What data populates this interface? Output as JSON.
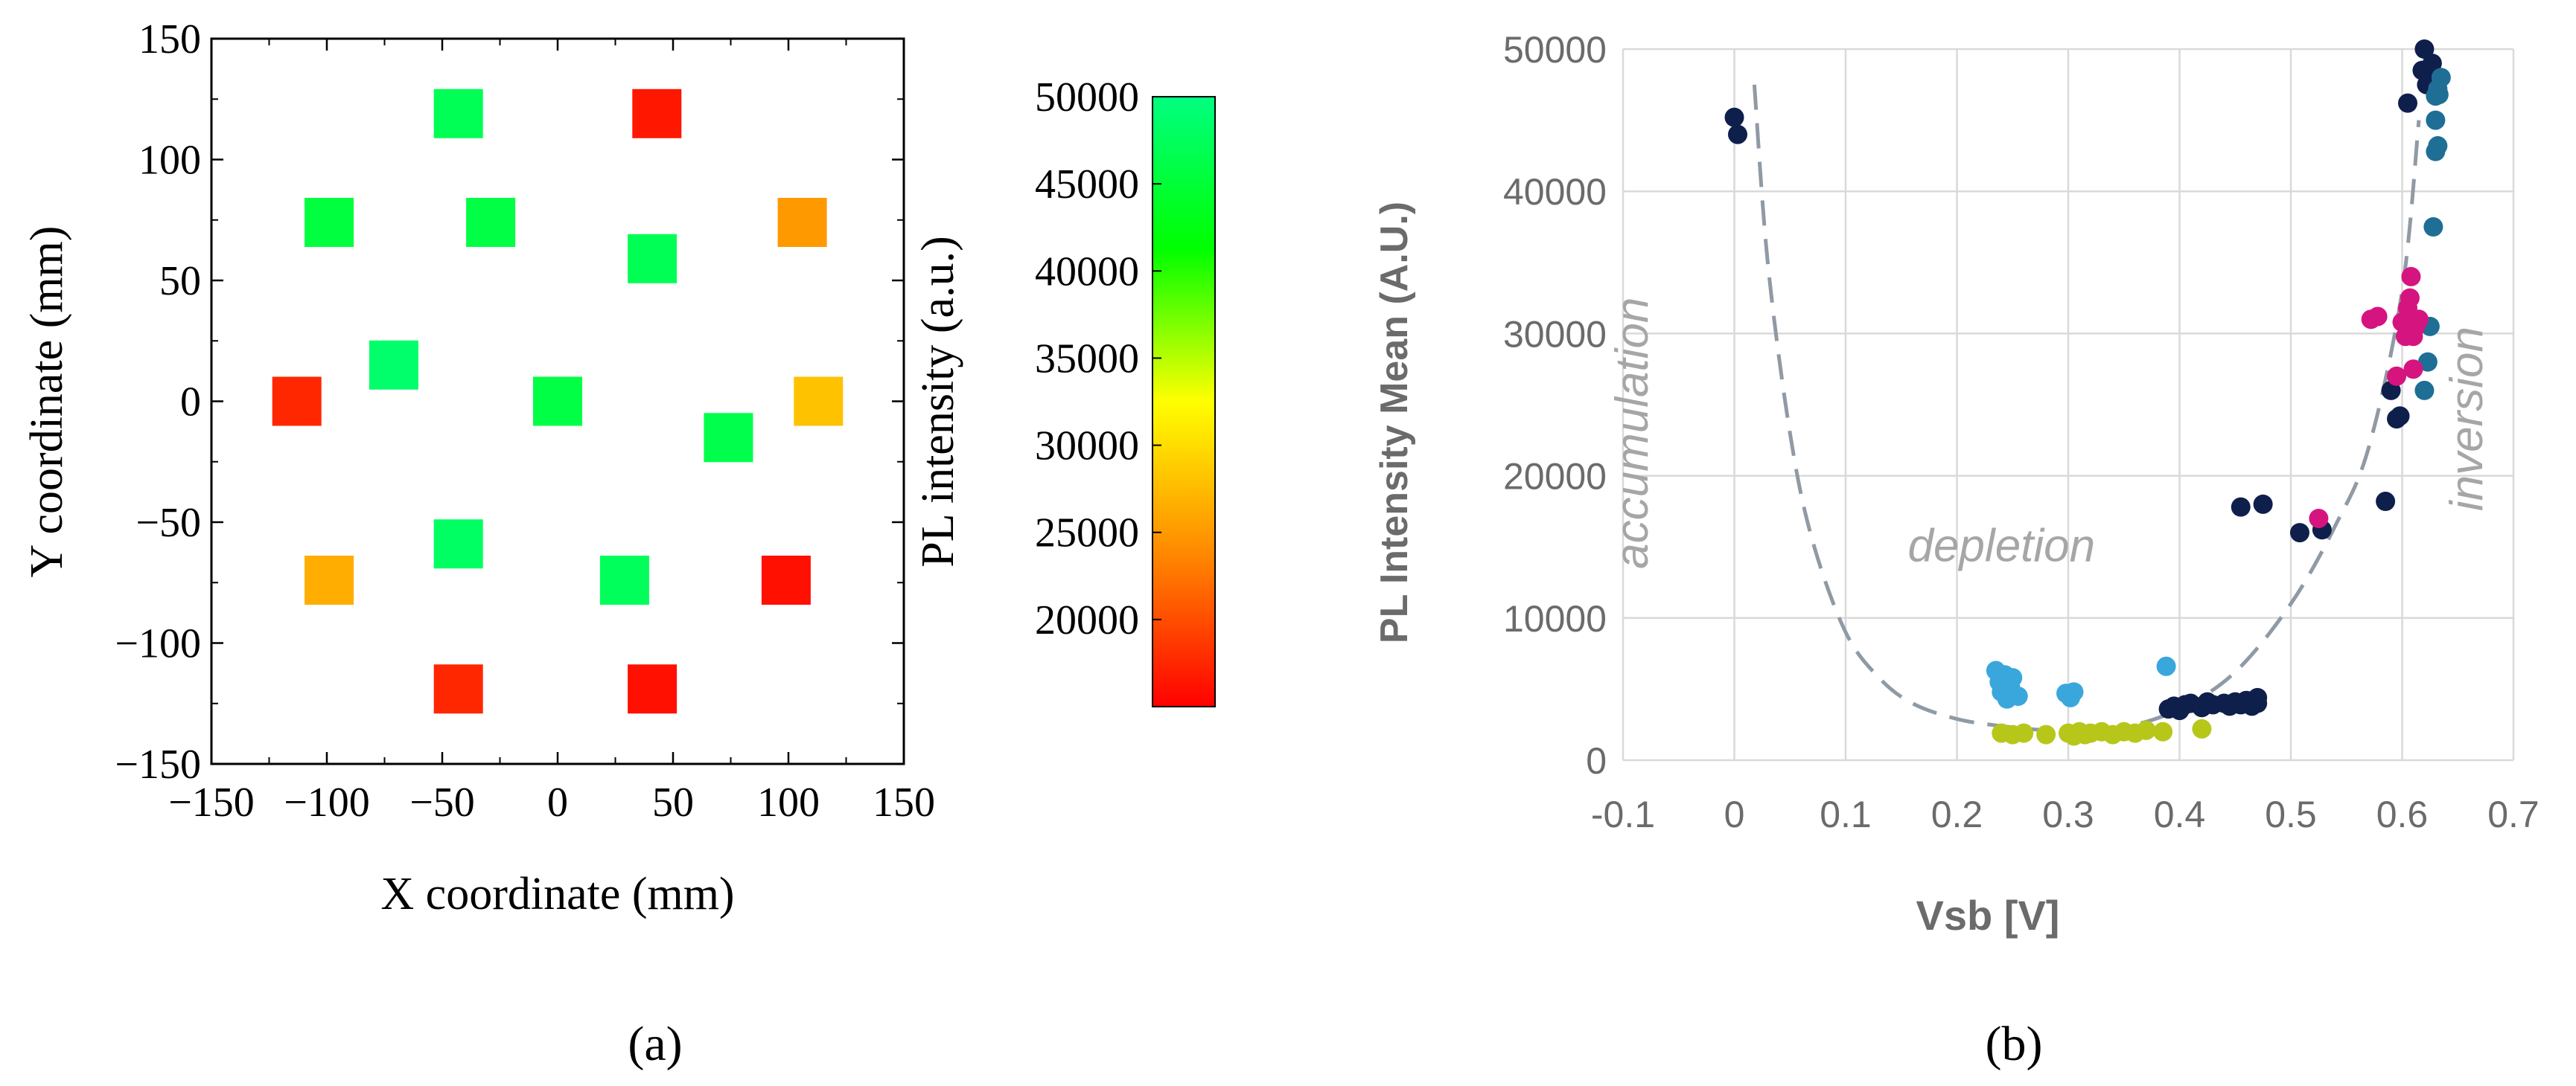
{
  "panels": {
    "a": {
      "label": "(a)"
    },
    "b": {
      "label": "(b)"
    }
  },
  "chart_data": [
    {
      "type": "heatmap",
      "title": "",
      "xlabel": "X coordinate (mm)",
      "ylabel": "Y coordinate (mm)",
      "xlim": [
        -150,
        150
      ],
      "ylim": [
        -150,
        150
      ],
      "xticks": [
        -150,
        -100,
        -50,
        0,
        50,
        100,
        150
      ],
      "yticks": [
        -150,
        -100,
        -50,
        0,
        50,
        100,
        150
      ],
      "grid": false,
      "colorbar": {
        "label": "PL intensity (a.u.)",
        "range": [
          15000,
          50000
        ],
        "ticks": [
          20000,
          25000,
          30000,
          35000,
          40000,
          45000,
          50000
        ],
        "colors": [
          "#ff0000",
          "#ff8800",
          "#ffff00",
          "#00ff00",
          "#00ff80"
        ]
      },
      "points": [
        {
          "x": -43,
          "y": 119,
          "value": 47000
        },
        {
          "x": 43,
          "y": 119,
          "value": 16500
        },
        {
          "x": -99,
          "y": 74,
          "value": 45500
        },
        {
          "x": -29,
          "y": 74,
          "value": 46000
        },
        {
          "x": 41,
          "y": 59,
          "value": 47000
        },
        {
          "x": 106,
          "y": 74,
          "value": 25000
        },
        {
          "x": -71,
          "y": 15,
          "value": 48500
        },
        {
          "x": -113,
          "y": 0,
          "value": 17500
        },
        {
          "x": 0,
          "y": 0,
          "value": 46000
        },
        {
          "x": 74,
          "y": -15,
          "value": 46500
        },
        {
          "x": 113,
          "y": 0,
          "value": 28000
        },
        {
          "x": -43,
          "y": -59,
          "value": 48000
        },
        {
          "x": -99,
          "y": -74,
          "value": 26500
        },
        {
          "x": 29,
          "y": -74,
          "value": 47500
        },
        {
          "x": 99,
          "y": -74,
          "value": 16000
        },
        {
          "x": -43,
          "y": -119,
          "value": 17500
        },
        {
          "x": 41,
          "y": -119,
          "value": 16000
        }
      ]
    },
    {
      "type": "scatter",
      "title": "",
      "xlabel": "Vsb [V]",
      "ylabel": "PL Intensity Mean (A.U.)",
      "xlim": [
        -0.1,
        0.7
      ],
      "ylim": [
        0,
        50000
      ],
      "xticks": [
        "-0.1",
        "0",
        "0.1",
        "0.2",
        "0.3",
        "0.4",
        "0.5",
        "0.6",
        "0.7"
      ],
      "yticks": [
        "0",
        "10000",
        "20000",
        "30000",
        "40000",
        "50000"
      ],
      "grid": true,
      "annotations": [
        {
          "text": "accumulation",
          "x": -0.078,
          "y": 23000,
          "rotation": -90
        },
        {
          "text": "depletion",
          "x": 0.24,
          "y": 14000,
          "rotation": 0
        },
        {
          "text": "inversion",
          "x": 0.672,
          "y": 24000,
          "rotation": -90
        }
      ],
      "fit_curve": {
        "style": "dashed",
        "color": "#909aa4",
        "x": [
          0.018,
          0.03,
          0.05,
          0.07,
          0.1,
          0.13,
          0.16,
          0.2,
          0.24,
          0.28,
          0.31,
          0.35,
          0.4,
          0.45,
          0.5,
          0.54,
          0.57,
          0.6,
          0.615
        ],
        "y": [
          47500,
          35000,
          23000,
          15500,
          9000,
          5800,
          4000,
          2900,
          2400,
          2100,
          2000,
          2300,
          3600,
          6200,
          11000,
          16500,
          22000,
          33000,
          45000
        ]
      },
      "series": [
        {
          "color": "#0f1f4b",
          "points": [
            [
              0.0,
              45200
            ],
            [
              0.003,
              44000
            ],
            [
              0.39,
              3600
            ],
            [
              0.395,
              3800
            ],
            [
              0.4,
              3500
            ],
            [
              0.405,
              3900
            ],
            [
              0.41,
              4000
            ],
            [
              0.42,
              3700
            ],
            [
              0.425,
              4100
            ],
            [
              0.43,
              3900
            ],
            [
              0.44,
              4000
            ],
            [
              0.445,
              3800
            ],
            [
              0.45,
              4100
            ],
            [
              0.455,
              3900
            ],
            [
              0.46,
              4200
            ],
            [
              0.465,
              3800
            ],
            [
              0.47,
              4400
            ],
            [
              0.47,
              4000
            ],
            [
              0.455,
              17800
            ],
            [
              0.475,
              18000
            ],
            [
              0.508,
              16000
            ],
            [
              0.528,
              16200
            ],
            [
              0.585,
              18200
            ],
            [
              0.59,
              26000
            ],
            [
              0.595,
              24000
            ],
            [
              0.598,
              24200
            ],
            [
              0.605,
              46200
            ],
            [
              0.618,
              48500
            ],
            [
              0.62,
              50000
            ],
            [
              0.622,
              47500
            ],
            [
              0.625,
              48200
            ],
            [
              0.627,
              49000
            ],
            [
              0.63,
              47800
            ]
          ]
        },
        {
          "color": "#1e6e96",
          "points": [
            [
              0.625,
              30500
            ],
            [
              0.623,
              28000
            ],
            [
              0.62,
              26000
            ],
            [
              0.628,
              37500
            ],
            [
              0.63,
              42800
            ],
            [
              0.632,
              43200
            ],
            [
              0.63,
              45000
            ],
            [
              0.63,
              46700
            ],
            [
              0.632,
              47200
            ],
            [
              0.635,
              48000
            ],
            [
              0.633,
              46800
            ]
          ]
        },
        {
          "color": "#d6147f",
          "points": [
            [
              0.525,
              17000
            ],
            [
              0.572,
              31000
            ],
            [
              0.578,
              31200
            ],
            [
              0.595,
              27000
            ],
            [
              0.6,
              30800
            ],
            [
              0.603,
              29800
            ],
            [
              0.605,
              31800
            ],
            [
              0.607,
              32500
            ],
            [
              0.608,
              34000
            ],
            [
              0.61,
              29800
            ],
            [
              0.61,
              27500
            ],
            [
              0.612,
              30500
            ],
            [
              0.615,
              31000
            ]
          ]
        },
        {
          "color": "#3aa7dc",
          "points": [
            [
              0.235,
              6300
            ],
            [
              0.238,
              5500
            ],
            [
              0.24,
              4800
            ],
            [
              0.243,
              6000
            ],
            [
              0.245,
              4300
            ],
            [
              0.248,
              5200
            ],
            [
              0.25,
              5800
            ],
            [
              0.255,
              4500
            ],
            [
              0.298,
              4700
            ],
            [
              0.302,
              4400
            ],
            [
              0.305,
              4800
            ],
            [
              0.388,
              6600
            ]
          ]
        },
        {
          "color": "#b6c71a",
          "points": [
            [
              0.24,
              1900
            ],
            [
              0.25,
              1800
            ],
            [
              0.26,
              1900
            ],
            [
              0.28,
              1800
            ],
            [
              0.3,
              1900
            ],
            [
              0.305,
              1700
            ],
            [
              0.31,
              2000
            ],
            [
              0.315,
              1800
            ],
            [
              0.32,
              1900
            ],
            [
              0.33,
              2000
            ],
            [
              0.34,
              1800
            ],
            [
              0.35,
              2000
            ],
            [
              0.36,
              1900
            ],
            [
              0.37,
              2100
            ],
            [
              0.385,
              2000
            ],
            [
              0.42,
              2200
            ]
          ]
        }
      ]
    }
  ]
}
